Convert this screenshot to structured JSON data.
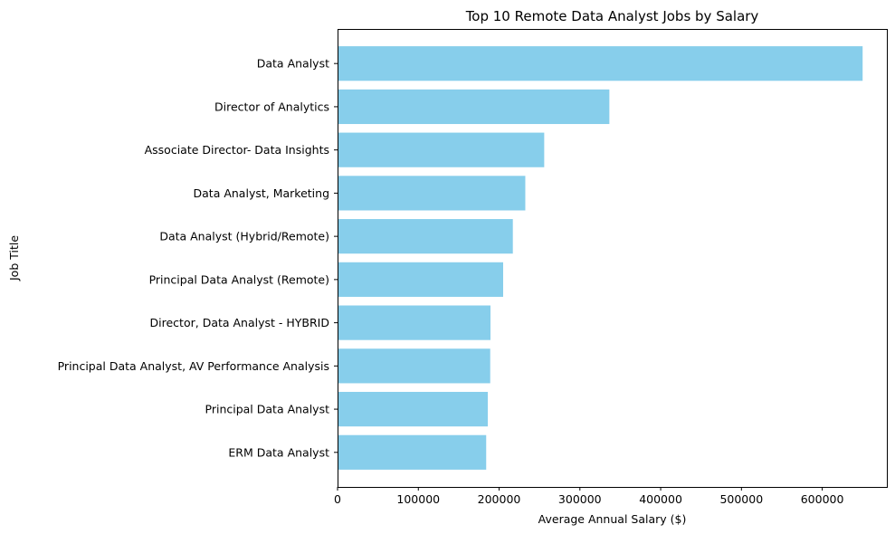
{
  "chart_data": {
    "type": "bar",
    "orientation": "horizontal",
    "title": "Top 10 Remote Data Analyst Jobs by Salary",
    "xlabel": "Average Annual Salary ($)",
    "ylabel": "Job Title",
    "categories": [
      "Data Analyst",
      "Director of Analytics",
      "Associate Director- Data Insights",
      "Data Analyst, Marketing",
      "Data Analyst (Hybrid/Remote)",
      "Principal Data Analyst (Remote)",
      "Director, Data Analyst - HYBRID",
      "Principal Data Analyst, AV Performance Analysis",
      "Principal Data Analyst",
      "ERM Data Analyst"
    ],
    "values": [
      650000,
      336500,
      255829.5,
      232423,
      217000,
      205000,
      189309,
      189000,
      186000,
      184000
    ],
    "xlim": [
      0,
      680000
    ],
    "xticks": [
      0,
      100000,
      200000,
      300000,
      400000,
      500000,
      600000
    ],
    "xtick_labels": [
      "0",
      "100000",
      "200000",
      "300000",
      "400000",
      "500000",
      "600000"
    ],
    "grid": false,
    "bar_color": "#87ceeb"
  }
}
